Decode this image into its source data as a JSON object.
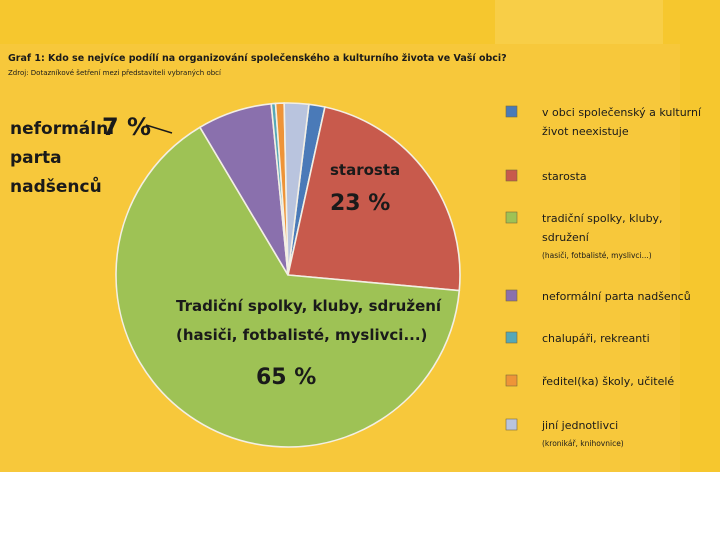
{
  "chart_data": {
    "type": "pie",
    "title": "Graf 1: Kdo se nejvíce podílí na organizování společenského a kulturního života ve Vaší obci?",
    "subtitle": "Zdroj: Dotazníkové šetření mezi představiteli vybraných obcí",
    "legend_position": "right",
    "slices": [
      {
        "label": "v obci společenský a kulturní život neexistuje",
        "value": 1.5,
        "color": "#4a7ab8"
      },
      {
        "label": "starosta",
        "value": 23,
        "color": "#c85a4c"
      },
      {
        "label": "tradiční spolky, kluby, sdružení",
        "value": 65,
        "color": "#9ec255"
      },
      {
        "label": "neformální parta nadšenců",
        "value": 7,
        "color": "#8a70ad"
      },
      {
        "label": "chalupáři, rekreanti",
        "value": 0.4,
        "color": "#55a8b8"
      },
      {
        "label": "ředitel(ka) školy, učitelé",
        "value": 0.8,
        "color": "#ee9438"
      },
      {
        "label": "jiní jednotlivci",
        "value": 2.3,
        "color": "#b9c4de"
      }
    ],
    "legend": [
      {
        "lines": [
          "v obci společenský a kulturní",
          "život neexistuje"
        ],
        "color": "#4a7ab8"
      },
      {
        "lines": [
          "starosta"
        ],
        "color": "#c85a4c"
      },
      {
        "lines": [
          "tradiční spolky, kluby,",
          "sdružení"
        ],
        "sub": "(hasiči, fotbalisté, myslivci...)",
        "color": "#9ec255"
      },
      {
        "lines": [
          "neformální parta nadšenců"
        ],
        "color": "#8a70ad"
      },
      {
        "lines": [
          "chalupáři, rekreanti"
        ],
        "color": "#55a8b8"
      },
      {
        "lines": [
          "ředitel(ka) školy, učitelé"
        ],
        "color": "#ee9438"
      },
      {
        "lines": [
          "jiní jednotlivci"
        ],
        "sub": "(kronikář, knihovnice)",
        "color": "#b9c4de"
      }
    ],
    "annotations": {
      "starosta_label": "starosta",
      "starosta_pct": "23 %",
      "spolky_line1": "Tradiční spolky, kluby, sdružení",
      "spolky_line2": "(hasiči, fotbalisté, myslivci...)",
      "spolky_pct": "65 %",
      "parta_pct": "7 %",
      "parta_lines": [
        "neformální",
        "parta",
        "nadšenců"
      ]
    }
  },
  "colors": {
    "background": "#f6c72e",
    "panel": "#f7c83b",
    "panel_stripe": "#f2bd2a"
  }
}
